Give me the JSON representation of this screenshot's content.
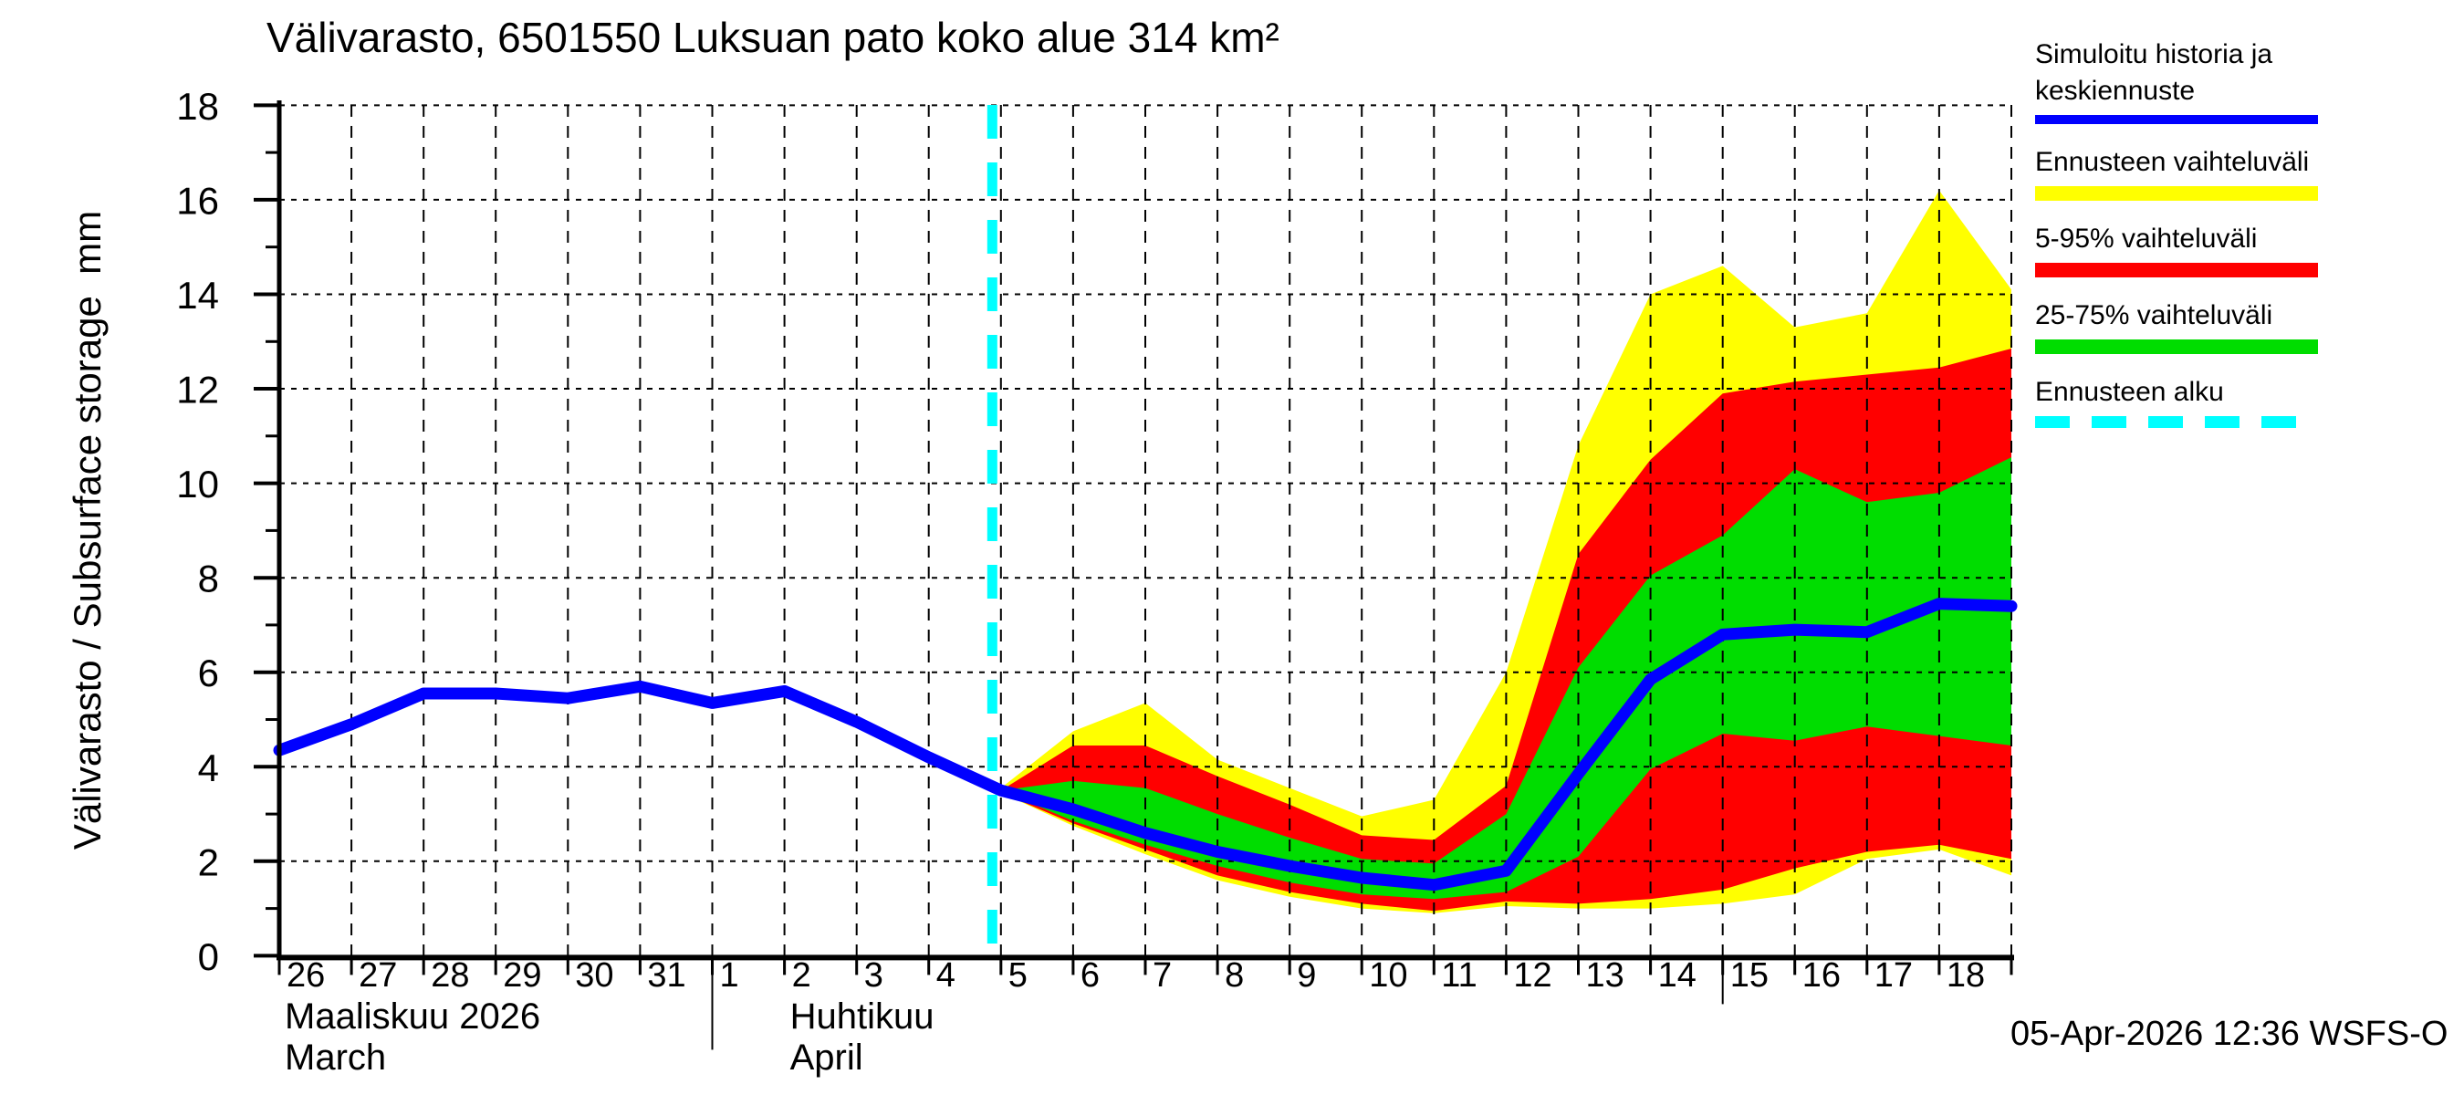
{
  "chart_data": {
    "type": "area",
    "title": "Välivarasto, 6501550 Luksuan pato koko alue 314 km²",
    "ylabel": "Välivarasto / Subsurface storage  mm",
    "xlabel": "",
    "unit": "mm",
    "ylim": [
      0,
      18
    ],
    "grid": true,
    "y_ticks": [
      0,
      2,
      4,
      6,
      8,
      10,
      12,
      14,
      16,
      18
    ],
    "y_minor_ticks": [
      1,
      3,
      5,
      7,
      9,
      11,
      13,
      15,
      17
    ],
    "x_axis": {
      "total_days": 24,
      "months": [
        {
          "name_fi": "Maaliskuu 2026",
          "name_en": "March",
          "start_offset": 0,
          "label_at_offset": 0,
          "days": [
            26,
            27,
            28,
            29,
            30,
            31
          ]
        },
        {
          "name_fi": "Huhtikuu",
          "name_en": "April",
          "start_offset": 6,
          "label_at_offset": 7,
          "days": [
            1,
            2,
            3,
            4,
            5,
            6,
            7,
            8,
            9,
            10,
            11,
            12,
            13,
            14,
            15,
            16,
            17,
            18
          ]
        }
      ],
      "separator_offsets": [
        6,
        20
      ]
    },
    "forecast_start_offset": 9.88,
    "history": {
      "dates": "26-Mar-2026 .. 05-Apr-2026",
      "day_offsets": [
        0,
        1,
        2,
        3,
        4,
        5,
        6,
        7,
        8,
        9,
        10
      ],
      "values": [
        4.35,
        4.9,
        5.55,
        5.55,
        5.45,
        5.7,
        5.35,
        5.6,
        4.95,
        4.2,
        3.5
      ]
    },
    "forecast": {
      "dates": "05-Apr-2026 .. 19-Apr-2026",
      "day_offsets": [
        10,
        11,
        12,
        13,
        14,
        15,
        16,
        17,
        18,
        19,
        20,
        21,
        22,
        23,
        24
      ],
      "median": [
        3.5,
        3.1,
        2.6,
        2.2,
        1.9,
        1.65,
        1.5,
        1.8,
        3.85,
        5.85,
        6.8,
        6.9,
        6.85,
        7.45,
        7.4
      ],
      "band_minmax_upper": [
        3.55,
        4.75,
        5.35,
        4.15,
        3.55,
        2.95,
        3.3,
        6.0,
        10.8,
        14.0,
        14.6,
        13.3,
        13.6,
        16.2,
        14.1
      ],
      "band_minmax_lower": [
        3.45,
        2.75,
        2.15,
        1.6,
        1.25,
        1.0,
        0.9,
        1.05,
        1.0,
        1.0,
        1.1,
        1.3,
        2.05,
        2.25,
        1.7
      ],
      "band_5_95_upper": [
        3.5,
        4.45,
        4.45,
        3.8,
        3.2,
        2.55,
        2.45,
        3.6,
        8.5,
        10.5,
        11.9,
        12.15,
        12.3,
        12.45,
        12.85
      ],
      "band_5_95_lower": [
        3.45,
        2.8,
        2.25,
        1.7,
        1.35,
        1.1,
        0.95,
        1.15,
        1.1,
        1.2,
        1.4,
        1.85,
        2.2,
        2.35,
        2.05
      ],
      "band_25_75_upper": [
        3.5,
        3.7,
        3.55,
        3.0,
        2.5,
        2.05,
        1.95,
        3.0,
        6.1,
        8.05,
        8.9,
        10.3,
        9.6,
        9.8,
        10.55
      ],
      "band_25_75_lower": [
        3.5,
        2.85,
        2.35,
        1.9,
        1.55,
        1.3,
        1.2,
        1.35,
        2.1,
        3.95,
        4.7,
        4.55,
        4.85,
        4.65,
        4.45
      ]
    },
    "colors": {
      "history_median": "#0000ff",
      "minmax_band": "#ffff00",
      "p5_95_band": "#ff0000",
      "p25_75_band": "#00dd00",
      "forecast_start": "#00ffff",
      "axis": "#000000"
    }
  },
  "legend": {
    "items": [
      {
        "label": "Simuloitu historia ja keskiennuste",
        "lines": [
          "Simuloitu historia ja",
          "keskiennuste"
        ],
        "color": "#0000ff",
        "dashed": false
      },
      {
        "label": "Ennusteen vaihteluväli",
        "lines": [
          "Ennusteen vaihteluväli"
        ],
        "color": "#ffff00",
        "dashed": false
      },
      {
        "label": "5-95% vaihteluväli",
        "lines": [
          "5-95% vaihteluväli"
        ],
        "color": "#ff0000",
        "dashed": false
      },
      {
        "label": "25-75% vaihteluväli",
        "lines": [
          "25-75% vaihteluväli"
        ],
        "color": "#00dd00",
        "dashed": false
      },
      {
        "label": "Ennusteen alku",
        "lines": [
          "Ennusteen alku"
        ],
        "color": "#00ffff",
        "dashed": true
      }
    ]
  },
  "footer": {
    "timestamp": "05-Apr-2026 12:36 WSFS-O"
  }
}
